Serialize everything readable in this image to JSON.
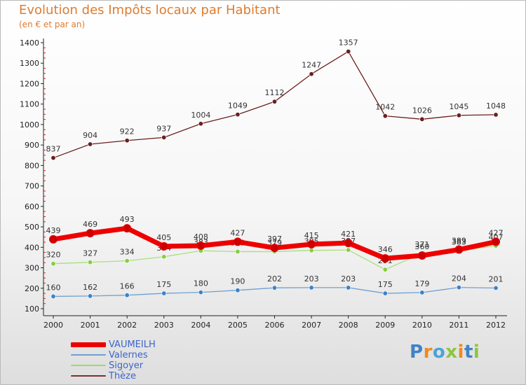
{
  "header": {
    "title": "Evolution des Impôts locaux par Habitant",
    "subtitle": "(en € et par an)"
  },
  "legend": [
    {
      "label": "VAUMEILH",
      "color": "#ee0000",
      "width": "thick"
    },
    {
      "label": "Valernes",
      "color": "#6fa0d2",
      "width": "thin"
    },
    {
      "label": "Sigoyer",
      "color": "#99dd66",
      "width": "thin"
    },
    {
      "label": "Thèze",
      "color": "#7a3030",
      "width": "thin"
    }
  ],
  "logo": {
    "text": "Proxiti",
    "letters": [
      {
        "ch": "P",
        "color": "#3f83c8"
      },
      {
        "ch": "r",
        "color": "#f08a1c"
      },
      {
        "ch": "o",
        "color": "#4aa3d8"
      },
      {
        "ch": "x",
        "color": "#8cc63f"
      },
      {
        "ch": "i",
        "color": "#f08a1c"
      },
      {
        "ch": "t",
        "color": "#3f83c8"
      },
      {
        "ch": "i",
        "color": "#8cc63f"
      }
    ]
  },
  "chart_data": {
    "type": "line",
    "title": "Evolution des Impôts locaux par Habitant",
    "subtitle": "(en € et par an)",
    "x": [
      "2000",
      "2001",
      "2002",
      "2003",
      "2004",
      "2005",
      "2006",
      "2007",
      "2008",
      "2009",
      "2010",
      "2011",
      "2012"
    ],
    "ylim": [
      100,
      1400
    ],
    "yticks": [
      100,
      200,
      300,
      400,
      500,
      600,
      700,
      800,
      900,
      1000,
      1100,
      1200,
      1300,
      1400
    ],
    "grid": false,
    "legend_position": "bottom-left",
    "series": [
      {
        "name": "Thèze",
        "color": "#6b1f1f",
        "marker": "#6b1f1f",
        "stroke": 1.3,
        "values": [
          837,
          904,
          922,
          937,
          1004,
          1049,
          1112,
          1247,
          1357,
          1042,
          1026,
          1045,
          1048
        ]
      },
      {
        "name": "Valernes",
        "color": "#6fa0d2",
        "marker": "#3a83c9",
        "stroke": 1.3,
        "values": [
          160,
          162,
          166,
          175,
          180,
          190,
          202,
          203,
          203,
          175,
          179,
          204,
          201
        ]
      },
      {
        "name": "Sigoyer",
        "color": "#a8e07a",
        "marker": "#88cc44",
        "stroke": 1.3,
        "values": [
          320,
          327,
          334,
          354,
          383,
          379,
          379,
          385,
          387,
          291,
          371,
          383,
          407
        ]
      },
      {
        "name": "VAUMEILH",
        "color": "#ee0000",
        "marker": "#cc0000",
        "stroke": 7,
        "values": [
          439,
          469,
          493,
          405,
          408,
          427,
          397,
          415,
          421,
          346,
          360,
          389,
          427
        ]
      }
    ]
  }
}
